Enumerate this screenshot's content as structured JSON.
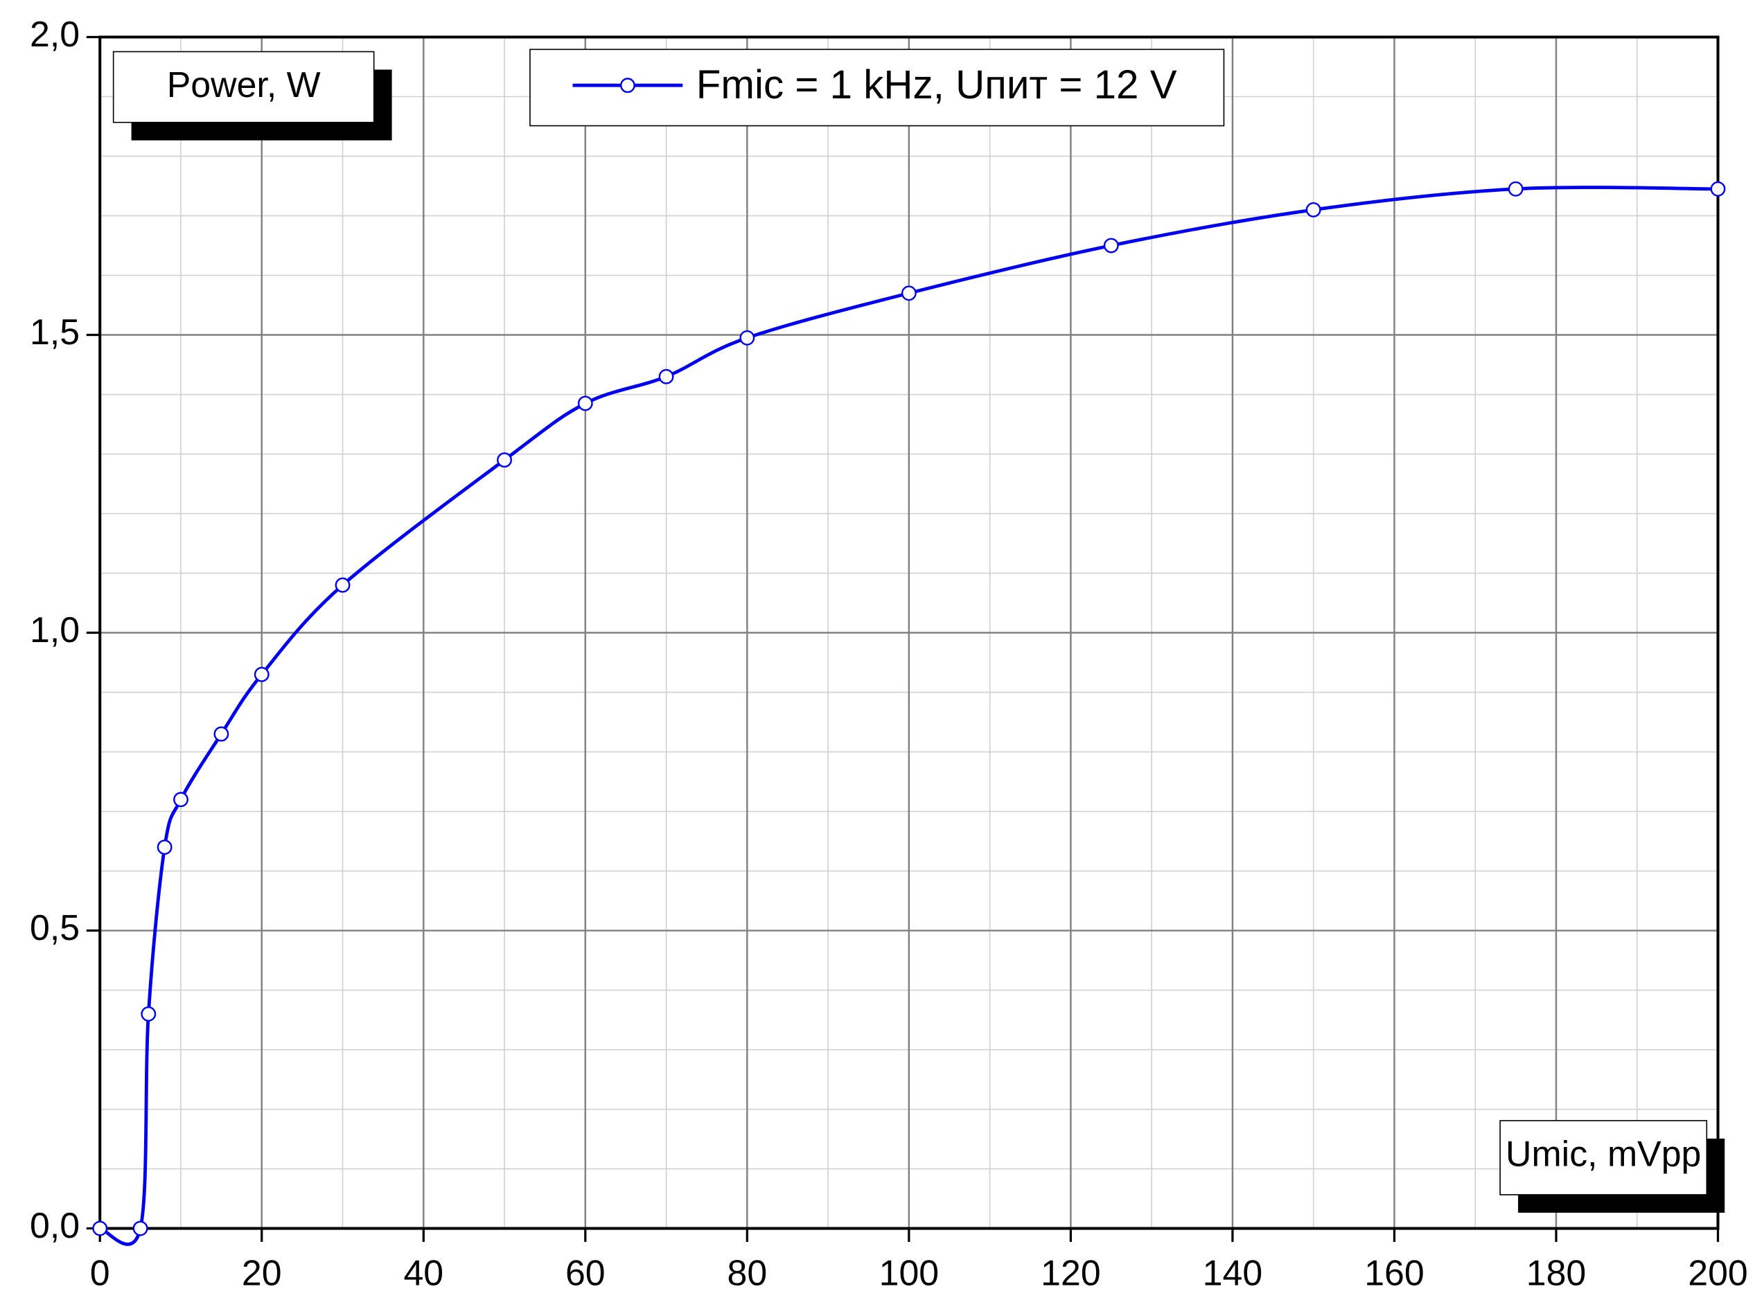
{
  "chart_data": {
    "type": "line",
    "ylabel": "Power, W",
    "xlabel": "Umic, mVpp",
    "x": [
      0,
      5,
      6,
      8,
      10,
      15,
      20,
      30,
      50,
      60,
      70,
      80,
      100,
      125,
      150,
      175,
      200
    ],
    "series": [
      {
        "name": "Fmic = 1 kHz, Uпит = 12 V",
        "color": "#0000ee",
        "values": [
          0,
          0,
          0.36,
          0.64,
          0.72,
          0.83,
          0.93,
          1.08,
          1.29,
          1.385,
          1.43,
          1.495,
          1.57,
          1.65,
          1.71,
          1.745,
          1.745
        ]
      }
    ],
    "xlim": [
      0,
      200
    ],
    "xticks": [
      0,
      20,
      40,
      60,
      80,
      100,
      120,
      140,
      160,
      180,
      200
    ],
    "ylim": [
      0,
      2
    ],
    "yticks": [
      {
        "value": 0,
        "label": "0,0"
      },
      {
        "value": 0.5,
        "label": "0,5"
      },
      {
        "value": 1,
        "label": "1,0"
      },
      {
        "value": 1.5,
        "label": "1,5"
      },
      {
        "value": 2,
        "label": "2,0"
      }
    ],
    "grid": true
  }
}
